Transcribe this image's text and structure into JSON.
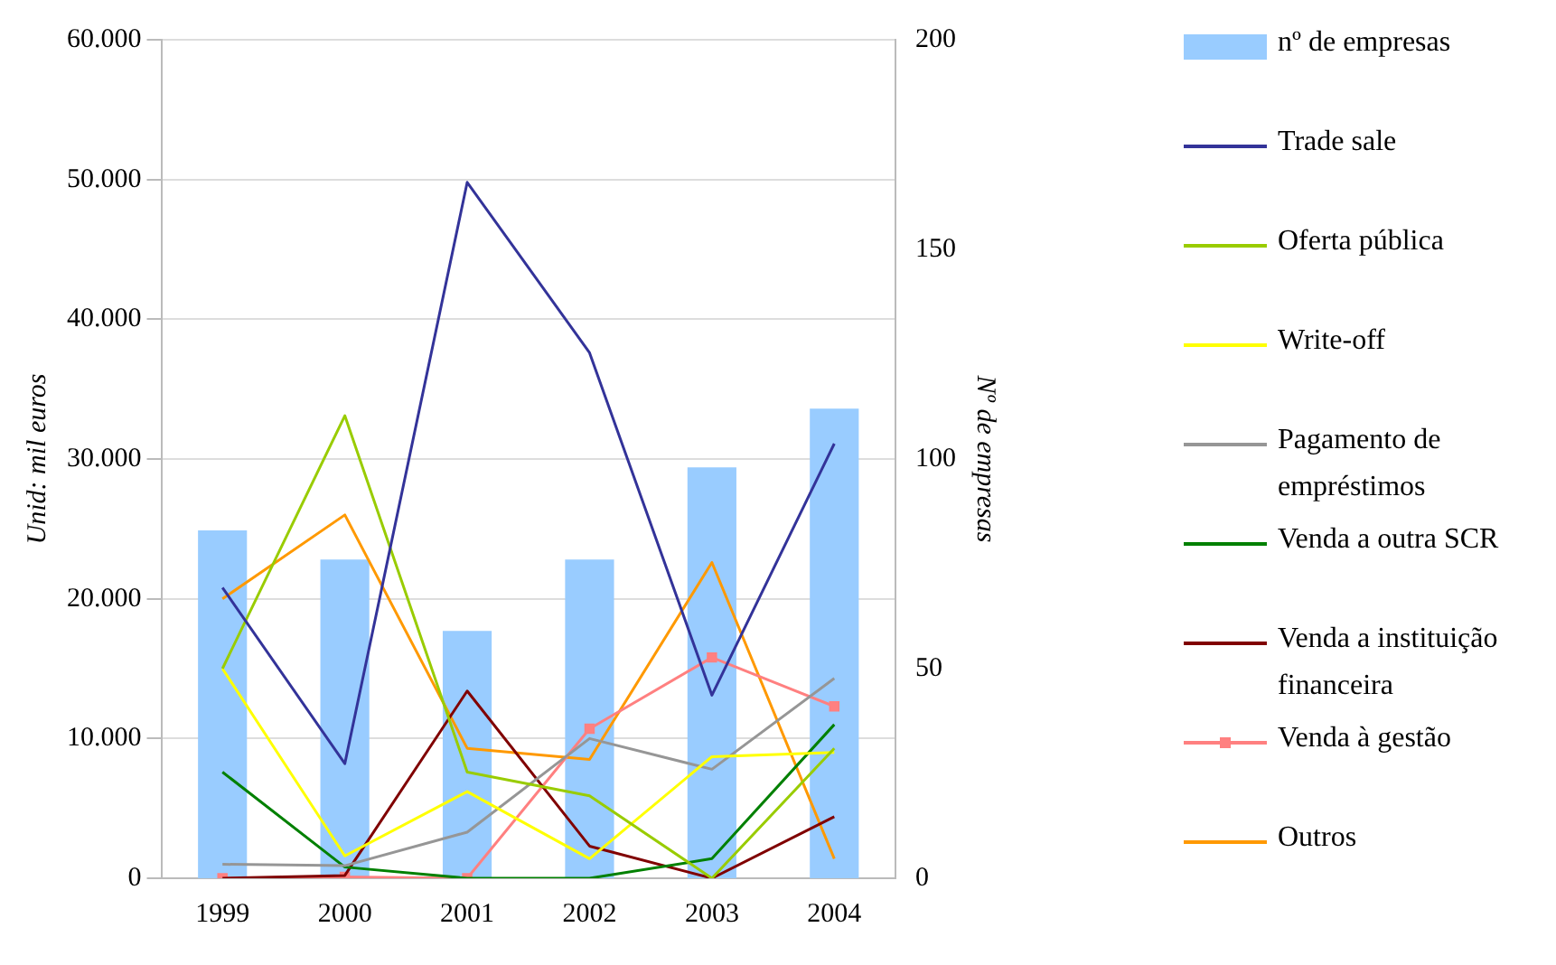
{
  "chart_data": {
    "type": "bar",
    "categories": [
      "1999",
      "2000",
      "2001",
      "2002",
      "2003",
      "2004"
    ],
    "ylabel": "Unid: mil euros",
    "y2label": "Nº de empresas",
    "ylim": [
      0,
      60000
    ],
    "yticks": [
      {
        "value": 0,
        "label": "0"
      },
      {
        "value": 10000,
        "label": "10.000"
      },
      {
        "value": 20000,
        "label": "20.000"
      },
      {
        "value": 30000,
        "label": "30.000"
      },
      {
        "value": 40000,
        "label": "40.000"
      },
      {
        "value": 50000,
        "label": "50.000"
      },
      {
        "value": 60000,
        "label": "60.000"
      }
    ],
    "y2lim": [
      0,
      200
    ],
    "y2ticks": [
      0,
      50,
      100,
      150,
      200
    ],
    "grid": "y",
    "legend": "right",
    "series": [
      {
        "name": "nº de empresas",
        "axis": "y2",
        "color": "#99ccff",
        "values": [
          83,
          76,
          59,
          76,
          98,
          112
        ]
      },
      {
        "name": "Trade sale",
        "type": "line",
        "color": "#333399",
        "values": [
          20800,
          8200,
          49800,
          37600,
          13100,
          31100
        ]
      },
      {
        "name": "Oferta pública",
        "type": "line",
        "color": "#99cc00",
        "values": [
          15000,
          33100,
          7600,
          5900,
          0,
          9300
        ]
      },
      {
        "name": "Write-off",
        "type": "line",
        "color": "#ffff00",
        "values": [
          15000,
          1600,
          6200,
          1400,
          8700,
          9000
        ]
      },
      {
        "name": "Pagamento de empréstimos",
        "type": "line",
        "color": "#969696",
        "values": [
          1000,
          900,
          3300,
          10000,
          7800,
          14300
        ]
      },
      {
        "name": "Venda a outra SCR",
        "type": "line",
        "color": "#008000",
        "values": [
          7600,
          800,
          0,
          0,
          1400,
          11000
        ]
      },
      {
        "name": "Venda a instituição financeira",
        "type": "line",
        "color": "#800000",
        "values": [
          0,
          200,
          13400,
          2300,
          0,
          4400
        ]
      },
      {
        "name": "Venda à gestão",
        "type": "line",
        "color": "#ff8080",
        "marker": "square",
        "values": [
          0,
          100,
          0,
          10700,
          15800,
          12300
        ]
      },
      {
        "name": "Outros",
        "type": "line",
        "color": "#ff9900",
        "values": [
          20000,
          26000,
          9300,
          8500,
          22600,
          1400
        ]
      }
    ]
  }
}
